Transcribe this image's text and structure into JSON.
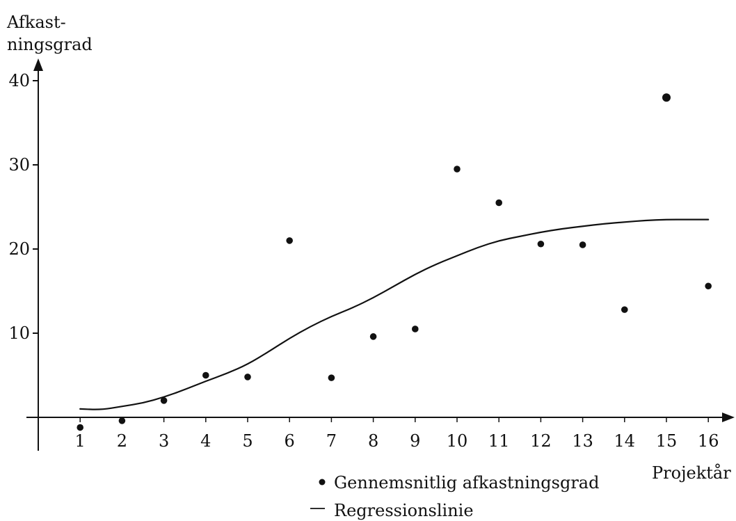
{
  "chart_data": {
    "type": "scatter",
    "ylabel_line1": "Afkast-",
    "ylabel_line2": "ningsgrad",
    "xlabel": "Projektår",
    "x_ticks": [
      "1",
      "2",
      "3",
      "4",
      "5",
      "6",
      "7",
      "8",
      "9",
      "10",
      "11",
      "12",
      "13",
      "14",
      "15",
      "16"
    ],
    "y_ticks": [
      "10",
      "20",
      "30",
      "40"
    ],
    "xlim": [
      0,
      16.6
    ],
    "ylim": [
      -5,
      42
    ],
    "legend": {
      "points_label": "Gennemsnitlig afkastningsgrad",
      "line_label": "Regressionslinie",
      "placement": "bottom-right"
    },
    "series": [
      {
        "name": "Gennemsnitlig afkastningsgrad",
        "kind": "points",
        "x": [
          1,
          2,
          3,
          4,
          5,
          6,
          7,
          8,
          9,
          10,
          11,
          12,
          13,
          14,
          15,
          16
        ],
        "y": [
          -1.2,
          -0.4,
          2,
          5,
          4.8,
          21,
          4.7,
          9.6,
          10.5,
          29.5,
          25.5,
          20.6,
          20.5,
          12.8,
          38,
          15.6
        ]
      },
      {
        "name": "Regressionslinie",
        "kind": "line",
        "x": [
          1,
          1.5,
          2,
          2.5,
          3,
          3.5,
          4,
          4.5,
          5,
          5.5,
          6,
          6.5,
          7,
          7.5,
          8,
          8.5,
          9,
          9.5,
          10,
          10.5,
          11,
          11.5,
          12,
          12.5,
          13,
          13.5,
          14,
          14.5,
          15,
          15.5,
          16
        ],
        "y": [
          1.0,
          0.9,
          1.3,
          1.7,
          2.4,
          3.3,
          4.3,
          5.2,
          6.3,
          7.8,
          9.4,
          10.8,
          12.0,
          13.0,
          14.2,
          15.6,
          17.0,
          18.2,
          19.2,
          20.2,
          21.0,
          21.5,
          22.0,
          22.4,
          22.7,
          23.0,
          23.2,
          23.4,
          23.5,
          23.5,
          23.5
        ]
      }
    ]
  }
}
